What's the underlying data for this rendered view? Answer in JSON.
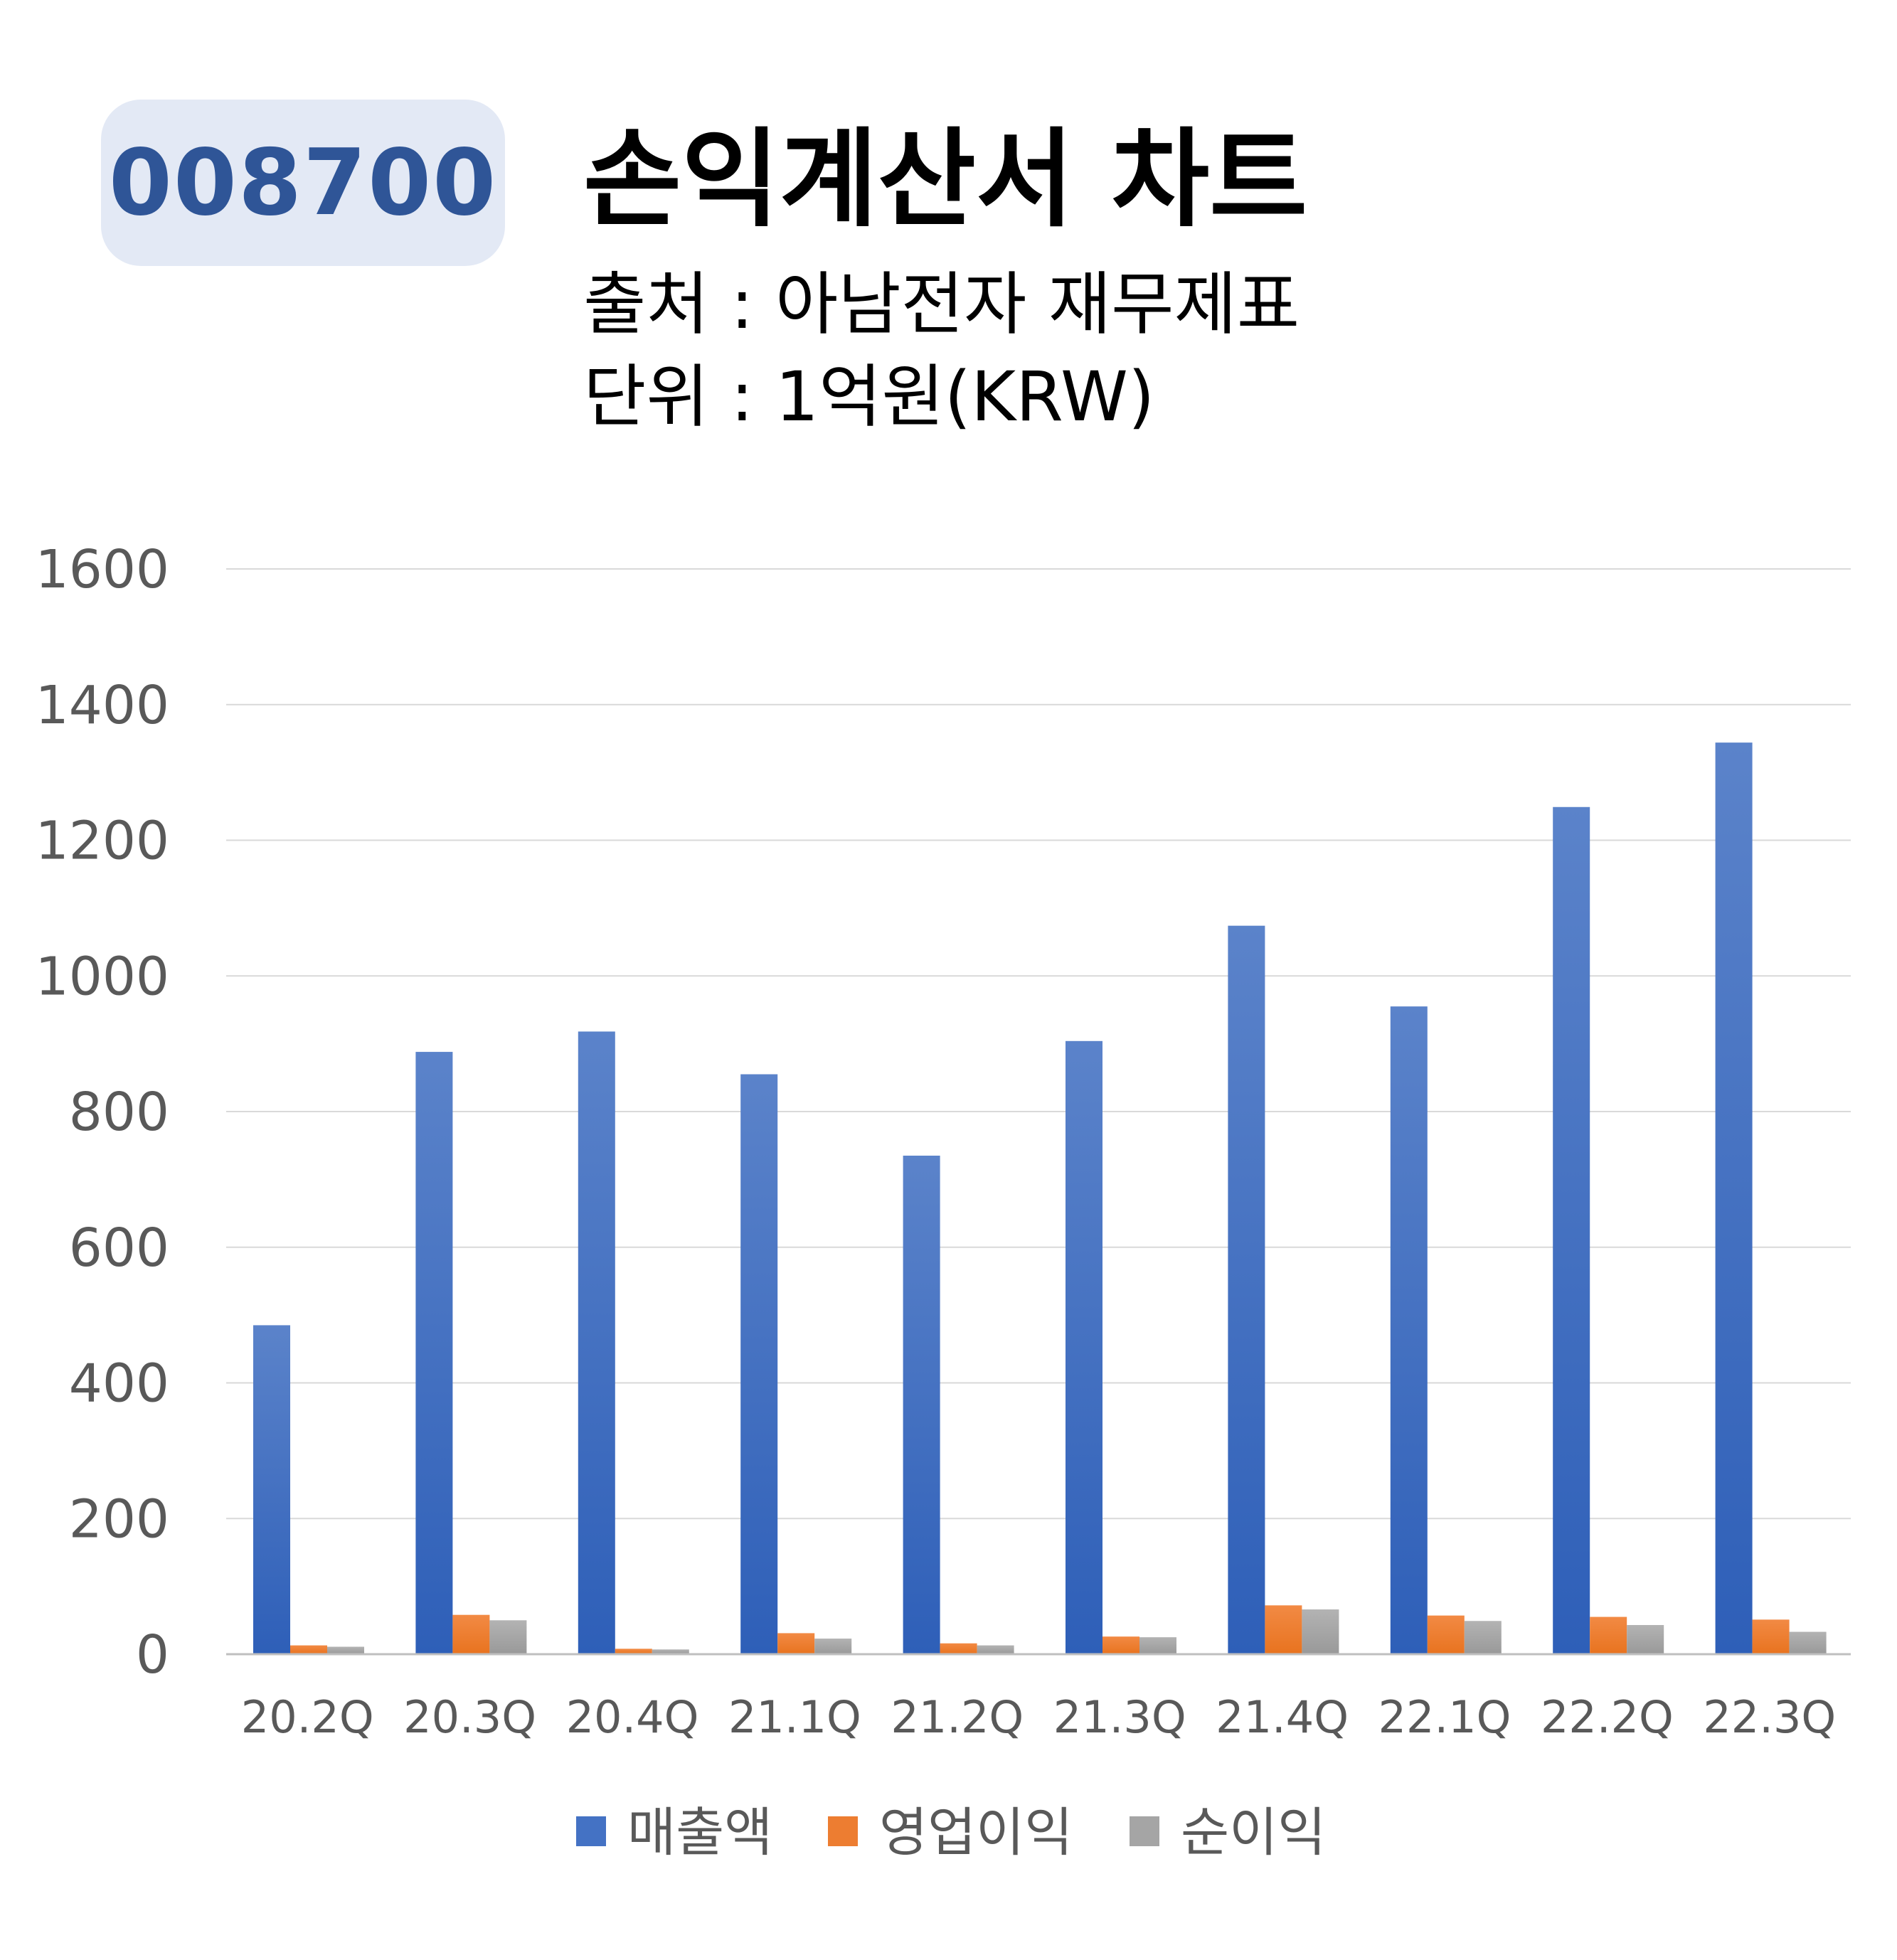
{
  "ticker": "008700",
  "header": {
    "title": "손익계산서 차트",
    "source_line": "출처 : 아남전자 재무제표",
    "unit_line": "단위 : 1억원(KRW)"
  },
  "colors": {
    "badge_bg": "#e3e9f5",
    "badge_text": "#2f5597",
    "revenue": "#4472c4",
    "operating_income": "#ed7d31",
    "net_income": "#a5a5a5",
    "grid": "#d9d9d9"
  },
  "chart_data": {
    "type": "bar",
    "categories": [
      "20.2Q",
      "20.3Q",
      "20.4Q",
      "21.1Q",
      "21.2Q",
      "21.3Q",
      "21.4Q",
      "22.1Q",
      "22.2Q",
      "22.3Q"
    ],
    "series": [
      {
        "name": "매출액",
        "values": [
          485,
          888,
          918,
          855,
          735,
          904,
          1074,
          955,
          1249,
          1344
        ]
      },
      {
        "name": "영업이익",
        "values": [
          13,
          58,
          8,
          31,
          16,
          26,
          72,
          57,
          55,
          51
        ]
      },
      {
        "name": "순이익",
        "values": [
          11,
          50,
          7,
          23,
          13,
          25,
          66,
          49,
          43,
          33
        ]
      }
    ],
    "ylim": [
      0,
      1600
    ],
    "yticks": [
      "0",
      "200",
      "400",
      "600",
      "800",
      "1000",
      "1200",
      "1400",
      "1600"
    ],
    "grid": true,
    "legend": "bottom"
  }
}
